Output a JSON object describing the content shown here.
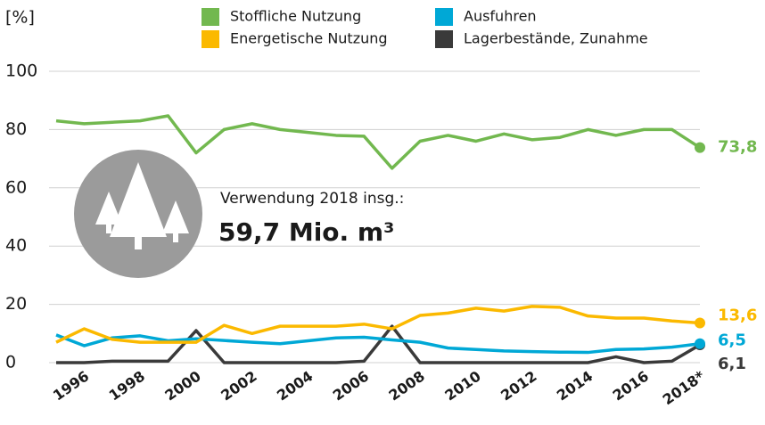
{
  "chart_data": {
    "type": "line",
    "y_label": "[%]",
    "annotation": "Verwendung 2018 insg.:",
    "annotation_value": "59,7 Mio. m³",
    "x": [
      1995,
      1996,
      1997,
      1998,
      1999,
      2000,
      2001,
      2002,
      2003,
      2004,
      2005,
      2006,
      2007,
      2008,
      2009,
      2010,
      2011,
      2012,
      2013,
      2014,
      2015,
      2016,
      2017,
      2018
    ],
    "xlim": [
      1995,
      2018
    ],
    "xticks": [
      1996,
      1998,
      2000,
      2002,
      2004,
      2006,
      2008,
      2010,
      2012,
      2014,
      2016,
      {
        "value": 2018,
        "label": "2018*"
      }
    ],
    "ylim": [
      0,
      100
    ],
    "yticks": [
      0,
      20,
      40,
      60,
      80,
      100
    ],
    "grid": true,
    "series": [
      {
        "name": "Stoffliche Nutzung",
        "color": "#72b84f",
        "values": [
          83,
          82,
          82.5,
          83,
          84.7,
          72,
          80,
          82,
          80,
          79,
          78,
          77.7,
          66.7,
          76,
          78,
          76,
          78.5,
          76.5,
          77.3,
          80,
          78,
          80,
          80,
          73.8
        ],
        "value_labels": [
          null,
          null,
          null,
          null,
          null,
          null,
          null,
          null,
          null,
          null,
          null,
          null,
          null,
          null,
          null,
          null,
          null,
          null,
          null,
          null,
          null,
          null,
          null,
          "73,8"
        ]
      },
      {
        "name": "Energetische Nutzung",
        "color": "#fbb900",
        "values": [
          7,
          11.6,
          8,
          7,
          7,
          7,
          12.8,
          10,
          12.5,
          12.5,
          12.5,
          13.2,
          11.6,
          16.2,
          17,
          18.7,
          17.7,
          19.3,
          19,
          16,
          15.3,
          15.3,
          14.3,
          13.6
        ],
        "value_labels": [
          null,
          null,
          null,
          null,
          null,
          null,
          null,
          null,
          null,
          null,
          null,
          null,
          null,
          null,
          null,
          null,
          null,
          null,
          null,
          null,
          null,
          null,
          null,
          "13,6"
        ]
      },
      {
        "name": "Ausfuhren",
        "color": "#00a8d6",
        "values": [
          9.5,
          5.8,
          8.5,
          9.2,
          7.5,
          8.2,
          7.6,
          7,
          6.5,
          7.5,
          8.5,
          8.7,
          7.8,
          7,
          5,
          4.5,
          4,
          3.8,
          3.6,
          3.5,
          4.5,
          4.7,
          5.3,
          6.5
        ],
        "value_labels": [
          null,
          null,
          null,
          null,
          null,
          null,
          null,
          null,
          null,
          null,
          null,
          null,
          null,
          null,
          null,
          null,
          null,
          null,
          null,
          null,
          null,
          null,
          null,
          "6,5"
        ]
      },
      {
        "name": "Lagerbestände, Zunahme",
        "color": "#3a3a3a",
        "values": [
          0,
          0,
          0.5,
          0.5,
          0.5,
          11,
          0,
          0,
          0,
          0,
          0,
          0.5,
          12.5,
          0,
          0,
          0,
          0,
          0,
          0,
          0,
          2,
          0,
          0.5,
          6.1
        ],
        "value_labels": [
          null,
          null,
          null,
          null,
          null,
          null,
          null,
          null,
          null,
          null,
          null,
          null,
          null,
          null,
          null,
          null,
          null,
          null,
          null,
          null,
          null,
          null,
          null,
          "6,1"
        ]
      }
    ]
  }
}
